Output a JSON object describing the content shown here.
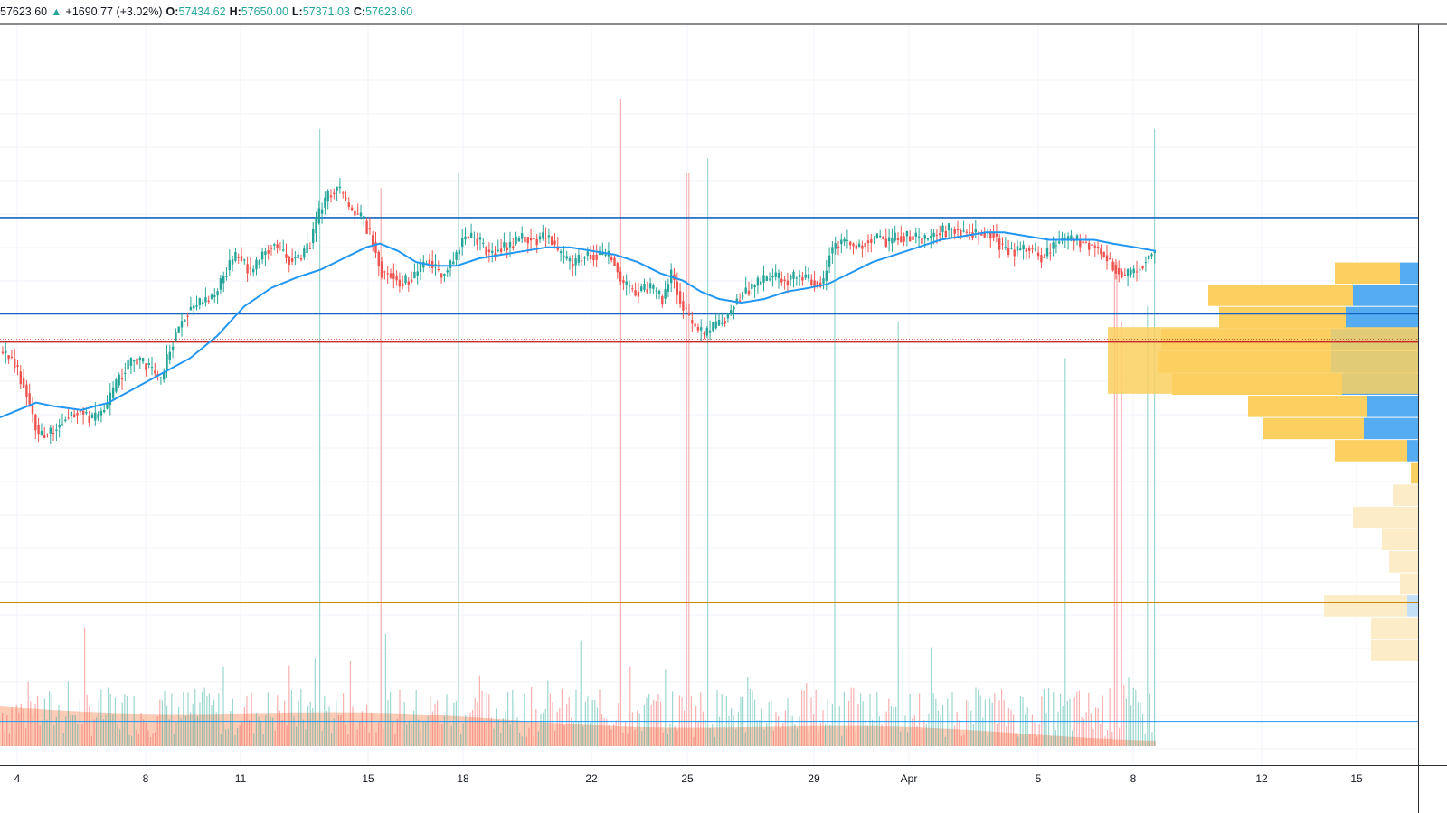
{
  "header": {
    "last_fragment": "57623.60",
    "change_arrow": "▲",
    "change": "+1690.77 (+3.02%)",
    "open_label": "O:",
    "open": "57434.62",
    "high_label": "H:",
    "high": "57650.00",
    "low_label": "L:",
    "low": "57371.03",
    "close_label": "C:",
    "close": "57623.60"
  },
  "colors": {
    "up": "#26a69a",
    "down": "#ef5350",
    "ma_line": "#2196f3",
    "resistance_line": "#1565c0",
    "current_price_line": "#c62828",
    "support_line": "#c8860a",
    "volume_ma": "#f9a27c",
    "vp_up_main": "#fcd060",
    "vp_down_main": "#55acf0",
    "vp_up_light": "#fcecc8",
    "vp_down_light": "#c3e0f7"
  },
  "chart_data": {
    "type": "candlestick",
    "x_ticks": [
      "4",
      "8",
      "11",
      "15",
      "18",
      "22",
      "25",
      "29",
      "Apr",
      "5",
      "8",
      "12",
      "15"
    ],
    "y_labels_visible": false,
    "series": [
      {
        "kind": "price",
        "values_note_free": true
      },
      {
        "kind": "moving_average"
      },
      {
        "kind": "volume"
      },
      {
        "kind": "volume_profile"
      }
    ],
    "price_path": [
      [
        0,
        44.0
      ],
      [
        15,
        45.0
      ],
      [
        30,
        49.0
      ],
      [
        45,
        55.5
      ],
      [
        60,
        55.0
      ],
      [
        75,
        53.0
      ],
      [
        90,
        52.0
      ],
      [
        105,
        53.5
      ],
      [
        120,
        51.5
      ],
      [
        135,
        47.5
      ],
      [
        150,
        45.0
      ],
      [
        165,
        46.0
      ],
      [
        180,
        48.0
      ],
      [
        195,
        42.0
      ],
      [
        210,
        38.5
      ],
      [
        225,
        37.5
      ],
      [
        240,
        36.5
      ],
      [
        255,
        32.5
      ],
      [
        265,
        31.0
      ],
      [
        280,
        33.5
      ],
      [
        295,
        30.5
      ],
      [
        305,
        29.5
      ],
      [
        320,
        31.5
      ],
      [
        335,
        31.5
      ],
      [
        345,
        29.5
      ],
      [
        355,
        25.5
      ],
      [
        365,
        23.0
      ],
      [
        375,
        22.0
      ],
      [
        390,
        25.0
      ],
      [
        405,
        26.5
      ],
      [
        415,
        29.5
      ],
      [
        425,
        33.5
      ],
      [
        435,
        33.5
      ],
      [
        445,
        35.0
      ],
      [
        460,
        34.0
      ],
      [
        475,
        31.5
      ],
      [
        490,
        34.0
      ],
      [
        505,
        31.5
      ],
      [
        515,
        28.5
      ],
      [
        530,
        29.0
      ],
      [
        545,
        31.0
      ],
      [
        555,
        30.0
      ],
      [
        565,
        30.0
      ],
      [
        580,
        28.5
      ],
      [
        595,
        29.0
      ],
      [
        610,
        28.5
      ],
      [
        620,
        31.0
      ],
      [
        635,
        32.5
      ],
      [
        650,
        31.0
      ],
      [
        665,
        31.0
      ],
      [
        680,
        31.5
      ],
      [
        690,
        35.0
      ],
      [
        705,
        36.0
      ],
      [
        720,
        35.5
      ],
      [
        735,
        37.0
      ],
      [
        745,
        33.5
      ],
      [
        755,
        37.5
      ],
      [
        765,
        40.0
      ],
      [
        780,
        42.0
      ],
      [
        795,
        40.5
      ],
      [
        805,
        39.5
      ],
      [
        815,
        37.5
      ],
      [
        825,
        36.0
      ],
      [
        840,
        35.0
      ],
      [
        855,
        34.0
      ],
      [
        870,
        34.5
      ],
      [
        885,
        34.0
      ],
      [
        900,
        34.5
      ],
      [
        912,
        35.0
      ],
      [
        920,
        30.5
      ],
      [
        935,
        29.0
      ],
      [
        950,
        30.0
      ],
      [
        960,
        29.0
      ],
      [
        975,
        28.5
      ],
      [
        985,
        29.5
      ],
      [
        995,
        28.5
      ],
      [
        1010,
        28.5
      ],
      [
        1025,
        29.0
      ],
      [
        1040,
        28.0
      ],
      [
        1055,
        27.5
      ],
      [
        1070,
        28.0
      ],
      [
        1085,
        28.0
      ],
      [
        1100,
        28.0
      ],
      [
        1110,
        30.0
      ],
      [
        1125,
        30.5
      ],
      [
        1140,
        30.0
      ],
      [
        1155,
        31.5
      ],
      [
        1165,
        30.0
      ],
      [
        1175,
        29.0
      ],
      [
        1190,
        29.0
      ],
      [
        1205,
        29.5
      ],
      [
        1215,
        30.0
      ],
      [
        1230,
        32.0
      ],
      [
        1245,
        34.0
      ],
      [
        1260,
        33.0
      ],
      [
        1270,
        31.5
      ],
      [
        1278,
        30.5
      ]
    ],
    "ma_path": [
      [
        0,
        53.0
      ],
      [
        20,
        52.0
      ],
      [
        40,
        51.0
      ],
      [
        60,
        51.5
      ],
      [
        90,
        52.0
      ],
      [
        120,
        51.0
      ],
      [
        150,
        49.0
      ],
      [
        180,
        47.0
      ],
      [
        210,
        45.0
      ],
      [
        240,
        42.0
      ],
      [
        270,
        38.0
      ],
      [
        300,
        35.5
      ],
      [
        330,
        34.0
      ],
      [
        355,
        33.0
      ],
      [
        380,
        31.5
      ],
      [
        405,
        30.0
      ],
      [
        420,
        29.5
      ],
      [
        440,
        30.5
      ],
      [
        460,
        32.0
      ],
      [
        480,
        32.5
      ],
      [
        505,
        32.5
      ],
      [
        530,
        31.5
      ],
      [
        555,
        31.0
      ],
      [
        580,
        30.5
      ],
      [
        605,
        30.0
      ],
      [
        630,
        30.0
      ],
      [
        655,
        30.5
      ],
      [
        680,
        31.0
      ],
      [
        705,
        32.0
      ],
      [
        730,
        33.5
      ],
      [
        755,
        34.5
      ],
      [
        775,
        36.0
      ],
      [
        795,
        37.0
      ],
      [
        820,
        37.5
      ],
      [
        845,
        37.0
      ],
      [
        870,
        36.0
      ],
      [
        895,
        35.5
      ],
      [
        915,
        35.0
      ],
      [
        940,
        33.5
      ],
      [
        965,
        32.0
      ],
      [
        990,
        31.0
      ],
      [
        1015,
        30.0
      ],
      [
        1040,
        29.0
      ],
      [
        1065,
        28.5
      ],
      [
        1090,
        28.0
      ],
      [
        1110,
        28.0
      ],
      [
        1135,
        28.5
      ],
      [
        1160,
        29.0
      ],
      [
        1185,
        29.0
      ],
      [
        1210,
        29.0
      ],
      [
        1230,
        29.5
      ],
      [
        1255,
        30.0
      ],
      [
        1278,
        30.5
      ]
    ],
    "price_to_y_scale_units": "percent_of_plot_height",
    "horizontal_levels": [
      {
        "name": "resistance-upper",
        "level_pct": 26.0
      },
      {
        "name": "resistance-lower",
        "level_pct": 39.0
      },
      {
        "name": "current-price",
        "level_pct": 42.8
      },
      {
        "name": "support",
        "level_pct": 78.0
      },
      {
        "name": "volume-baseline",
        "level_pct": 94.1
      }
    ],
    "volume_profile": [
      {
        "level_pct": 33.5,
        "up": 0.18,
        "down": 0.05,
        "shade": "main"
      },
      {
        "level_pct": 36.5,
        "up": 0.4,
        "down": 0.18,
        "shade": "main"
      },
      {
        "level_pct": 39.5,
        "up": 0.35,
        "down": 0.2,
        "shade": "main"
      },
      {
        "level_pct": 42.5,
        "up": 0.47,
        "down": 0.24,
        "shade": "main"
      },
      {
        "level_pct": 45.5,
        "up": 0.48,
        "down": 0.24,
        "shade": "main"
      },
      {
        "level_pct": 48.5,
        "up": 0.47,
        "down": 0.21,
        "shade": "main"
      },
      {
        "level_pct": 51.5,
        "up": 0.33,
        "down": 0.14,
        "shade": "main"
      },
      {
        "level_pct": 54.5,
        "up": 0.28,
        "down": 0.15,
        "shade": "main"
      },
      {
        "level_pct": 57.5,
        "up": 0.2,
        "down": 0.03,
        "shade": "main"
      },
      {
        "level_pct": 60.5,
        "up": 0.02,
        "down": 0.0,
        "shade": "main"
      },
      {
        "level_pct": 63.5,
        "up": 0.07,
        "down": 0.0,
        "shade": "light"
      },
      {
        "level_pct": 66.5,
        "up": 0.18,
        "down": 0.0,
        "shade": "light"
      },
      {
        "level_pct": 69.5,
        "up": 0.1,
        "down": 0.0,
        "shade": "light"
      },
      {
        "level_pct": 72.5,
        "up": 0.08,
        "down": 0.0,
        "shade": "light"
      },
      {
        "level_pct": 75.5,
        "up": 0.05,
        "down": 0.0,
        "shade": "light"
      },
      {
        "level_pct": 78.5,
        "up": 0.23,
        "down": 0.03,
        "shade": "light"
      },
      {
        "level_pct": 81.5,
        "up": 0.13,
        "down": 0.0,
        "shade": "light"
      },
      {
        "level_pct": 84.5,
        "up": 0.13,
        "down": 0.0,
        "shade": "light"
      }
    ]
  }
}
